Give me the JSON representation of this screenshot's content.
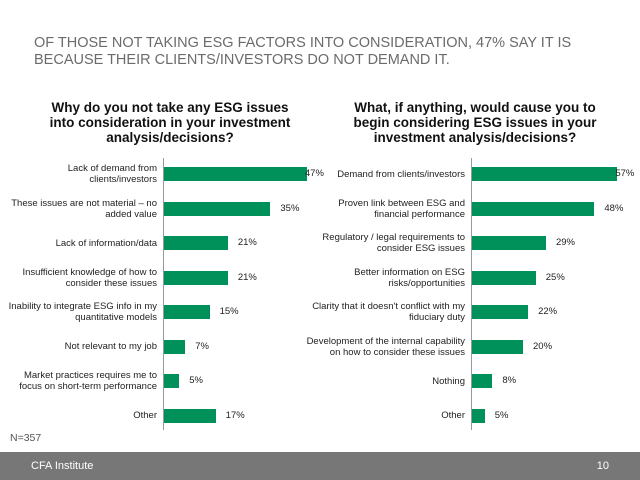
{
  "title": "Of those not taking ESG factors into consideration, 47% say it is because their clients/investors do not demand it.",
  "sample_size": "N=357",
  "footer": {
    "org": "CFA Institute",
    "page": "10"
  },
  "colors": {
    "bar": "#00905a",
    "footer": "#777777"
  },
  "chart_data": [
    {
      "type": "bar",
      "orientation": "horizontal",
      "title": "Why do you not take any ESG issues into consideration in your investment analysis/decisions?",
      "categories": [
        "Lack of demand from clients/investors",
        "These issues are not material – no added value",
        "Lack of information/data",
        "Insufficient knowledge of how to consider these issues",
        "Inability to integrate ESG info in my quantitative models",
        "Not relevant to my job",
        "Market practices requires me to focus on short-term performance",
        "Other"
      ],
      "values": [
        47,
        35,
        21,
        21,
        15,
        7,
        5,
        17
      ],
      "labels": [
        "47%",
        "35%",
        "21%",
        "21%",
        "15%",
        "7%",
        "5%",
        "17%"
      ]
    },
    {
      "type": "bar",
      "orientation": "horizontal",
      "title": "What, if anything, would cause you to begin considering ESG issues in your investment analysis/decisions?",
      "categories": [
        "Demand from clients/investors",
        "Proven link between ESG and financial performance",
        "Regulatory / legal requirements to consider ESG issues",
        "Better information on ESG risks/opportunities",
        "Clarity that it doesn't conflict with my fiduciary duty",
        "Development of the internal capability on how to consider these issues",
        "Nothing",
        "Other"
      ],
      "values": [
        57,
        48,
        29,
        25,
        22,
        20,
        8,
        5
      ],
      "labels": [
        "57%",
        "48%",
        "29%",
        "25%",
        "22%",
        "20%",
        "8%",
        "5%"
      ]
    }
  ]
}
